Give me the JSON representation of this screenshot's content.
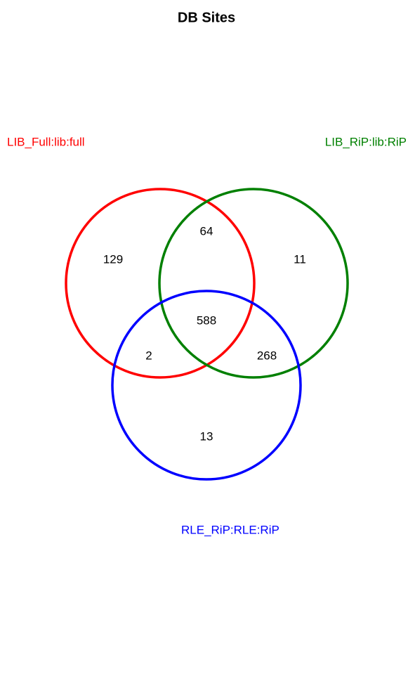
{
  "chart_data": {
    "type": "venn",
    "title": "DB Sites",
    "sets": [
      {
        "name": "LIB_Full:lib:full",
        "color": "#ff0000"
      },
      {
        "name": "LIB_RiP:lib:RiP",
        "color": "#008000"
      },
      {
        "name": "RLE_RiP:RLE:RiP",
        "color": "#0000ff"
      }
    ],
    "regions": [
      {
        "sets": [
          0
        ],
        "value": 129
      },
      {
        "sets": [
          0,
          1
        ],
        "value": 64
      },
      {
        "sets": [
          1
        ],
        "value": 11
      },
      {
        "sets": [
          0,
          1,
          2
        ],
        "value": 588
      },
      {
        "sets": [
          0,
          2
        ],
        "value": 2
      },
      {
        "sets": [
          1,
          2
        ],
        "value": 268
      },
      {
        "sets": [
          2
        ],
        "value": 13
      }
    ]
  }
}
